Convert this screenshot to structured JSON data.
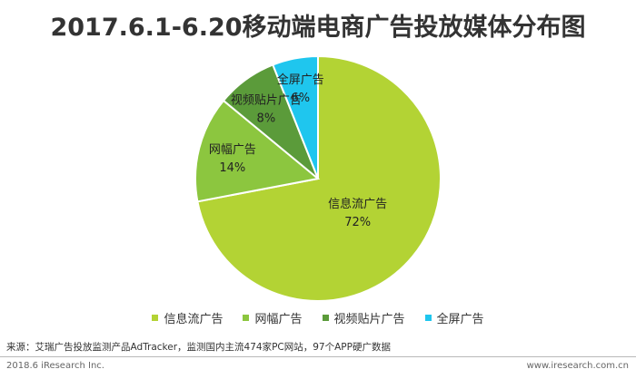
{
  "chart_data": {
    "type": "pie",
    "title": "2017.6.1-6.20移动端电商广告投放媒体分布图",
    "categories": [
      "信息流广告",
      "网幅广告",
      "视频贴片广告",
      "全屏广告"
    ],
    "values": [
      72,
      14,
      8,
      6
    ],
    "value_labels": [
      "72%",
      "14%",
      "8%",
      "6%"
    ],
    "colors": [
      "#b3d334",
      "#8cc63f",
      "#5b9b3a",
      "#1fc6ee"
    ],
    "legend_position": "bottom"
  },
  "source_note": "来源：艾瑞广告投放监测产品AdTracker，监测国内主流474家PC网站，97个APP硬广数据",
  "footer": {
    "copyright": "2018.6 iResearch Inc.",
    "website": "www.iresearch.com.cn"
  }
}
